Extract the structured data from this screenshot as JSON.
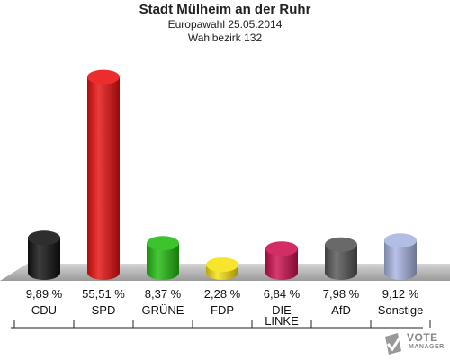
{
  "header": {
    "title": "Stadt Mülheim an der Ruhr",
    "subtitle1": "Europawahl 25.05.2014",
    "subtitle2": "Wahlbezirk 132"
  },
  "chart_data": {
    "type": "bar",
    "title": "Stadt Mülheim an der Ruhr",
    "categories": [
      "CDU",
      "SPD",
      "GRÜNE",
      "FDP",
      "DIE LINKE",
      "AfD",
      "Sonstige"
    ],
    "values": [
      9.89,
      55.51,
      8.37,
      2.28,
      6.84,
      7.98,
      9.12
    ],
    "value_labels": [
      "9,89 %",
      "55,51 %",
      "8,37 %",
      "2,28 %",
      "6,84 %",
      "7,98 %",
      "9,12 %"
    ],
    "category_labels": [
      [
        "CDU"
      ],
      [
        "SPD"
      ],
      [
        "GRÜNE"
      ],
      [
        "FDP"
      ],
      [
        "DIE",
        "LINKE"
      ],
      [
        "AfD"
      ],
      [
        "Sonstige"
      ]
    ],
    "colors": [
      "#111111",
      "#e81010",
      "#22bb10",
      "#f5e010",
      "#cc1050",
      "#555555",
      "#a8b4e0"
    ],
    "ylim": [
      0,
      60
    ],
    "grid": false,
    "legend": "none"
  },
  "logo": {
    "line1": "VOTE",
    "line2": "MANAGER"
  }
}
